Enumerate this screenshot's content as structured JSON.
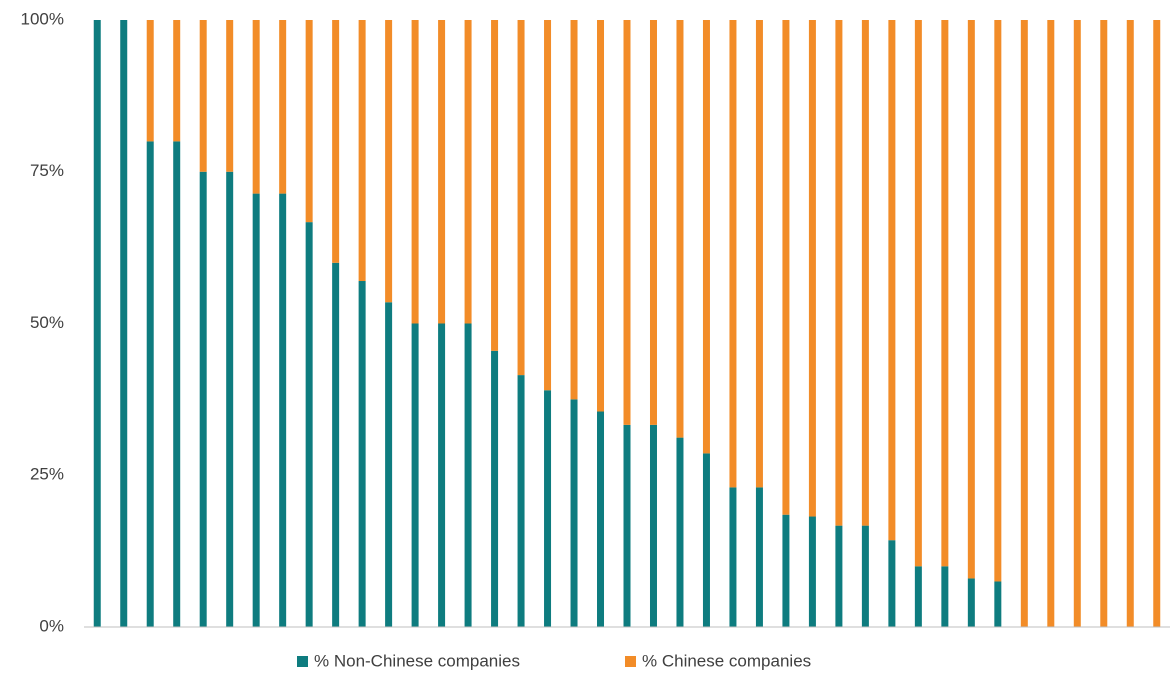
{
  "chart_data": {
    "type": "bar",
    "stacked": true,
    "categories": [
      null,
      null,
      null,
      null,
      null,
      null,
      null,
      null,
      null,
      null,
      null,
      null,
      null,
      null,
      null,
      null,
      null,
      null,
      null,
      null,
      null,
      null,
      null,
      null,
      null,
      null,
      null,
      null,
      null,
      null,
      null,
      null,
      null,
      null,
      null,
      null,
      null,
      null,
      null,
      null,
      null
    ],
    "series": [
      {
        "name": "% Non-Chinese companies",
        "color": "#0e7c7f",
        "values": [
          100,
          100,
          80,
          80,
          75,
          75,
          71.4,
          71.4,
          66.7,
          60,
          57,
          53.5,
          50,
          50,
          50,
          45.5,
          41.5,
          39,
          37.5,
          35.5,
          33.3,
          33.3,
          31.2,
          28.6,
          23,
          23,
          18.5,
          18.2,
          16.7,
          16.7,
          14.3,
          10,
          10,
          8,
          7.5,
          0,
          0,
          0,
          0,
          0,
          0
        ]
      },
      {
        "name": "% Chinese companies",
        "color": "#f28c28",
        "values": [
          0,
          0,
          20,
          20,
          25,
          25,
          28.6,
          28.6,
          33.3,
          40,
          43,
          46.5,
          50,
          50,
          50,
          54.5,
          58.5,
          61,
          62.5,
          64.5,
          66.7,
          66.7,
          68.8,
          71.4,
          77,
          77,
          81.5,
          81.8,
          83.3,
          83.3,
          85.7,
          90,
          90,
          92,
          92.5,
          100,
          100,
          100,
          100,
          100,
          100
        ]
      }
    ],
    "ylim": [
      0,
      100
    ],
    "yticks": [
      {
        "value": 0,
        "label": "0%"
      },
      {
        "value": 25,
        "label": "25%"
      },
      {
        "value": 50,
        "label": "50%"
      },
      {
        "value": 75,
        "label": "75%"
      },
      {
        "value": 100,
        "label": "100%"
      }
    ],
    "grid": false,
    "legend": "bottom"
  }
}
